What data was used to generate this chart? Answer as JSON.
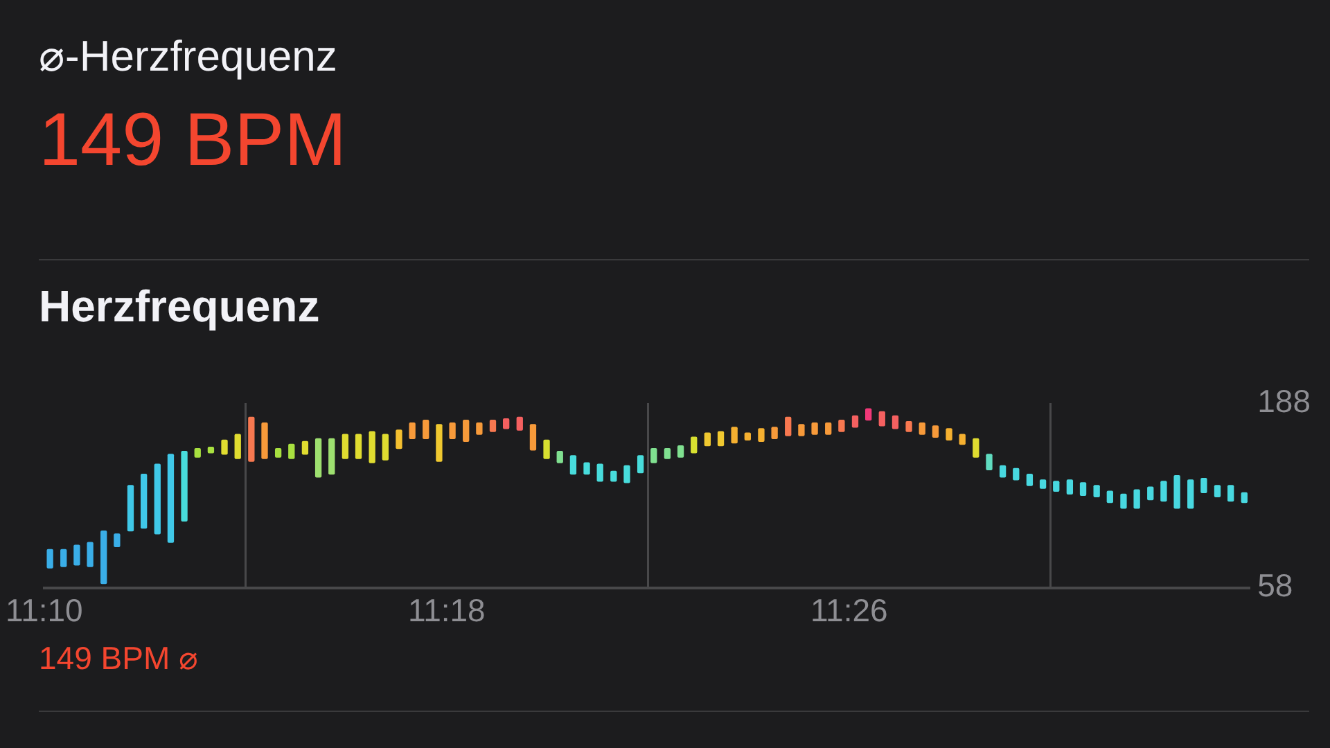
{
  "chart_data": {
    "type": "bar",
    "title": "Herzfrequenz",
    "annotations": [
      "⌀-Herzfrequenz",
      "149 BPM",
      "149 BPM ⌀"
    ],
    "x": [
      11.1686,
      11.1731,
      11.1775,
      11.1819,
      11.1864,
      11.1908,
      11.1953,
      11.1997,
      11.2042,
      11.2086,
      11.2131,
      11.2175,
      11.2219,
      11.2264,
      11.2308,
      11.2353,
      11.2397,
      11.2442,
      11.2486,
      11.2531,
      11.2575,
      11.2619,
      11.2664,
      11.2708,
      11.2753,
      11.2797,
      11.2842,
      11.2886,
      11.2931,
      11.2975,
      11.3019,
      11.3064,
      11.3108,
      11.3153,
      11.3197,
      11.3242,
      11.3286,
      11.3331,
      11.3375,
      11.3419,
      11.3464,
      11.3508,
      11.3553,
      11.3597,
      11.3642,
      11.3686,
      11.3731,
      11.3775,
      11.3819,
      11.3864,
      11.3908,
      11.3953,
      11.3997,
      11.4042,
      11.4086,
      11.4131,
      11.4175,
      11.4219,
      11.4264,
      11.4308,
      11.4353,
      11.4397,
      11.4442,
      11.4486,
      11.4531,
      11.4575,
      11.4619,
      11.4664,
      11.4708,
      11.4753,
      11.4797,
      11.4842,
      11.4886,
      11.4931,
      11.4975,
      11.5019,
      11.5064,
      11.5108,
      11.5153,
      11.5197,
      11.5242,
      11.5286,
      11.5331,
      11.5375,
      11.5419,
      11.5464,
      11.5508,
      11.5553,
      11.5597,
      11.5642
    ],
    "base": [
      72,
      73,
      74,
      73,
      61,
      87,
      98,
      100,
      96,
      90,
      105,
      150,
      153,
      152,
      149,
      147,
      149,
      150,
      149,
      152,
      136,
      138,
      149,
      149,
      146,
      148,
      156,
      163,
      163,
      147,
      163,
      161,
      166,
      168,
      170,
      169,
      155,
      149,
      146,
      138,
      138,
      133,
      133,
      132,
      139,
      146,
      149,
      150,
      153,
      158,
      158,
      160,
      162,
      161,
      163,
      165,
      165,
      166,
      166,
      168,
      171,
      176,
      172,
      170,
      168,
      166,
      164,
      162,
      159,
      150,
      141,
      136,
      134,
      130,
      128,
      126,
      124,
      123,
      122,
      118,
      114,
      114,
      120,
      119,
      114,
      114,
      125,
      122,
      119,
      118
    ],
    "values": [
      13,
      12,
      14,
      17,
      37,
      9,
      32,
      38,
      49,
      62,
      49,
      6,
      4,
      10,
      17,
      31,
      25,
      6,
      10,
      9,
      27,
      25,
      17,
      17,
      22,
      18,
      13,
      11,
      13,
      26,
      11,
      15,
      8,
      8,
      7,
      9,
      18,
      13,
      8,
      13,
      8,
      12,
      7,
      12,
      12,
      10,
      7,
      8,
      11,
      9,
      10,
      11,
      5,
      9,
      8,
      13,
      8,
      8,
      8,
      8,
      8,
      8,
      10,
      9,
      7,
      8,
      8,
      8,
      7,
      13,
      11,
      8,
      8,
      8,
      6,
      7,
      10,
      9,
      8,
      8,
      10,
      13,
      9,
      14,
      23,
      20,
      10,
      8,
      11,
      7
    ],
    "colors": [
      "#3aaee8",
      "#3aaee8",
      "#3aaee8",
      "#3aaee8",
      "#3aaee8",
      "#3aaee8",
      "#40c8e8",
      "#40c8e8",
      "#40c8e8",
      "#40c8e8",
      "#48dcdc",
      "#a8e040",
      "#a8e040",
      "#e0dc30",
      "#e0dc30",
      "#f77850",
      "#f79a3a",
      "#a8e040",
      "#a8e040",
      "#e0dc30",
      "#9ee070",
      "#9ee070",
      "#e0dc30",
      "#e0dc30",
      "#e0dc30",
      "#e0dc30",
      "#f5c030",
      "#f79a3a",
      "#f79a3a",
      "#f0c830",
      "#f79a3a",
      "#f79a3a",
      "#f79a3a",
      "#f87850",
      "#f56060",
      "#f56060",
      "#f79a3a",
      "#d8e030",
      "#80e090",
      "#48dcdc",
      "#48dcdc",
      "#48dcdc",
      "#48dcdc",
      "#48dcdc",
      "#48dcdc",
      "#80e090",
      "#80e090",
      "#80e090",
      "#d8e030",
      "#f0c830",
      "#f0c830",
      "#f5b030",
      "#f5b030",
      "#f5b030",
      "#f79a3a",
      "#f87850",
      "#f79a3a",
      "#f79a3a",
      "#f79a3a",
      "#f87850",
      "#f56060",
      "#f03878",
      "#f56060",
      "#f56060",
      "#f87850",
      "#f79a3a",
      "#f79a3a",
      "#f5b030",
      "#f5b030",
      "#e0dc30",
      "#60dcc0",
      "#48d8e0",
      "#48d8e0",
      "#48d8e0",
      "#48d8e0",
      "#48d8e0",
      "#48d8e0",
      "#48d8e0",
      "#48d8e0",
      "#48d8e0",
      "#48d8e0",
      "#48d8e0",
      "#48d8e0",
      "#48d8e0",
      "#48d8e0",
      "#48d8e0",
      "#48d8e0",
      "#48d8e0",
      "#48d8e0",
      "#48d8e0"
    ],
    "xlim": [
      11.1667,
      11.5658
    ],
    "xticks": [
      {
        "value": 11.1667,
        "label": "11:10"
      },
      {
        "value": 11.3,
        "label": "11:18"
      },
      {
        "value": 11.4333,
        "label": "11:26"
      }
    ],
    "ylim": [
      58,
      188
    ],
    "yticks": [
      58,
      188
    ],
    "grid": "x"
  }
}
